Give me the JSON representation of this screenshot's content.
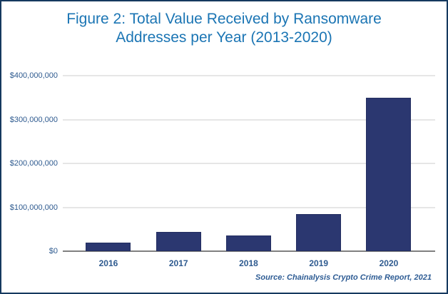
{
  "figure": {
    "title_line1": "Figure 2: Total Value Received by Ransomware",
    "title_line2": "Addresses per Year (2013-2020)",
    "source": "Source: Chainalysis Crypto Crime Report, 2021"
  },
  "colors": {
    "title": "#1B75B4",
    "bar": "#2B3770",
    "bar_stroke": "#232E60",
    "axis_label": "#2E5A8F",
    "source_text": "#2E5C94",
    "border": "#16395F",
    "gridline": "#E6E6E6",
    "baseline": "#808080"
  },
  "chart_data": {
    "type": "bar",
    "title": "Figure 2: Total Value Received by Ransomware Addresses per Year (2013-2020)",
    "categories": [
      "2016",
      "2017",
      "2018",
      "2019",
      "2020"
    ],
    "values": [
      20000000,
      44000000,
      35000000,
      85000000,
      350000000
    ],
    "xlabel": "",
    "ylabel": "",
    "ylim": [
      0,
      400000000
    ],
    "y_ticks": [
      0,
      100000000,
      200000000,
      300000000,
      400000000
    ],
    "y_tick_labels": [
      "$0",
      "$100,000,000",
      "$200,000,000",
      "$300,000,000",
      "$400,000,000"
    ],
    "grid": true,
    "legend": false,
    "bar_color": "#2B3770",
    "source": "Source: Chainalysis Crypto Crime Report, 2021"
  }
}
